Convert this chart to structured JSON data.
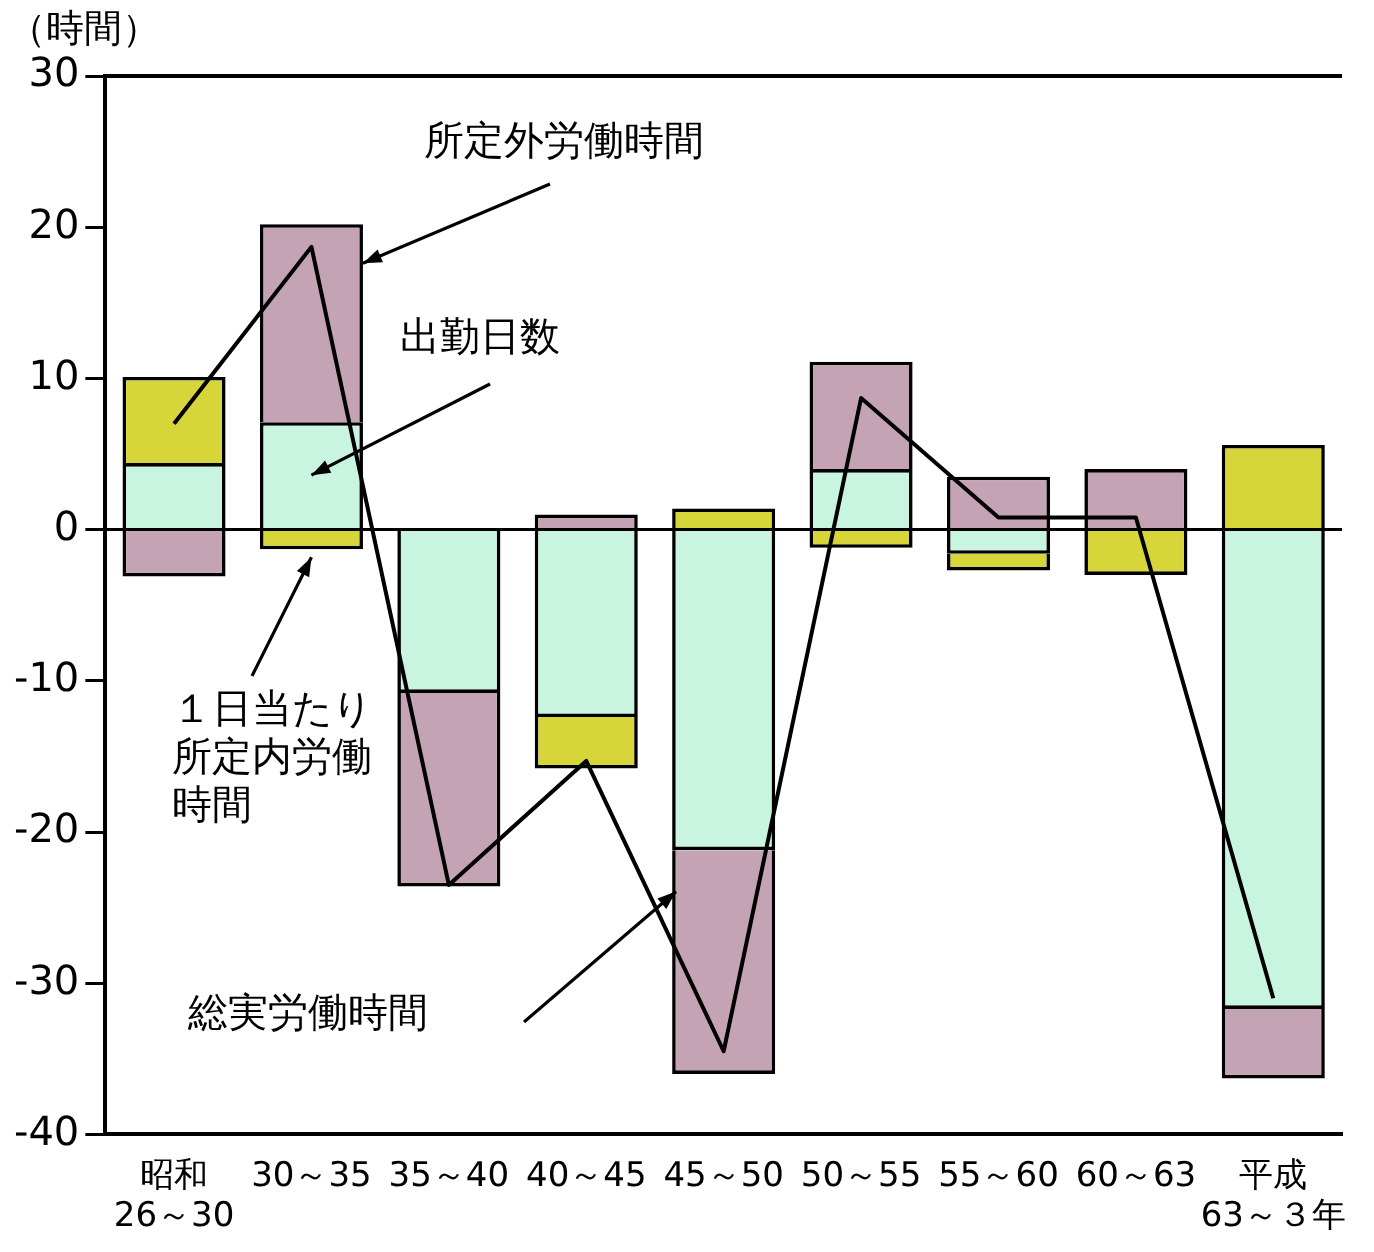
{
  "chart_data": {
    "type": "bar",
    "stacked": true,
    "ylabel": "（時間）",
    "categories": [
      "昭和\n26～30",
      "30～35",
      "35～40",
      "40～45",
      "45～50",
      "50～55",
      "55～60",
      "60～63",
      "平成\n63～３年"
    ],
    "series": [
      {
        "name": "出勤日数",
        "color": "#c8f4e0",
        "values": [
          4.4,
          7.1,
          -10.8,
          -12.4,
          -21.2,
          4,
          -1.6,
          0,
          -31.7
        ]
      },
      {
        "name": "１日当たり所定内労働時間",
        "color": "#d6d63a",
        "values": [
          5.7,
          -1.3,
          0,
          -3.4,
          1.4,
          -1.2,
          -1.1,
          -3,
          5.6
        ]
      },
      {
        "name": "所定外労働時間",
        "color": "#c4a4b4",
        "values": [
          -3.1,
          13.1,
          -12.8,
          1,
          -14.8,
          7.1,
          3.5,
          4,
          -4.6
        ]
      },
      {
        "name": "総実労働時間",
        "type": "line",
        "color": "#000000",
        "values": [
          7,
          18.7,
          -23.5,
          -15.3,
          -34.5,
          8.7,
          0.8,
          0.8,
          -31
        ]
      }
    ],
    "ylim": [
      -40,
      30
    ],
    "yticks": [
      -40,
      -30,
      -20,
      -10,
      0,
      10,
      20,
      30
    ],
    "ref_lines": [
      {
        "axis": "y",
        "value": 0
      }
    ],
    "grid": false,
    "legend": false,
    "marker": "none"
  }
}
